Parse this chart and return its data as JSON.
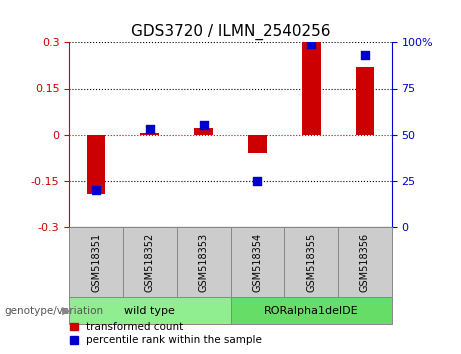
{
  "title": "GDS3720 / ILMN_2540256",
  "samples": [
    "GSM518351",
    "GSM518352",
    "GSM518353",
    "GSM518354",
    "GSM518355",
    "GSM518356"
  ],
  "transformed_counts": [
    -0.195,
    0.005,
    0.02,
    -0.06,
    0.305,
    0.22
  ],
  "percentile_ranks": [
    20,
    53,
    55,
    25,
    99,
    93
  ],
  "groups": [
    {
      "label": "wild type",
      "samples": [
        0,
        1,
        2
      ],
      "color": "#90EE90"
    },
    {
      "label": "RORalpha1delDE",
      "samples": [
        3,
        4,
        5
      ],
      "color": "#66DD66"
    }
  ],
  "left_ylim": [
    -0.3,
    0.3
  ],
  "right_ylim": [
    0,
    100
  ],
  "left_yticks": [
    -0.3,
    -0.15,
    0,
    0.15,
    0.3
  ],
  "right_yticks": [
    0,
    25,
    50,
    75,
    100
  ],
  "left_yticklabels": [
    "-0.3",
    "-0.15",
    "0",
    "0.15",
    "0.3"
  ],
  "right_yticklabels": [
    "0",
    "25",
    "50",
    "75",
    "100%"
  ],
  "bar_color": "#CC0000",
  "dot_color": "#0000CC",
  "hline_zero_color": "#CC0000",
  "hline_other_color": "#000000",
  "legend_red_label": "transformed count",
  "legend_blue_label": "percentile rank within the sample",
  "genotype_label": "genotype/variation",
  "bar_width": 0.35,
  "dot_size": 40,
  "sample_box_color": "#cccccc",
  "group1_color": "#90EE90",
  "group2_color": "#66DD66"
}
